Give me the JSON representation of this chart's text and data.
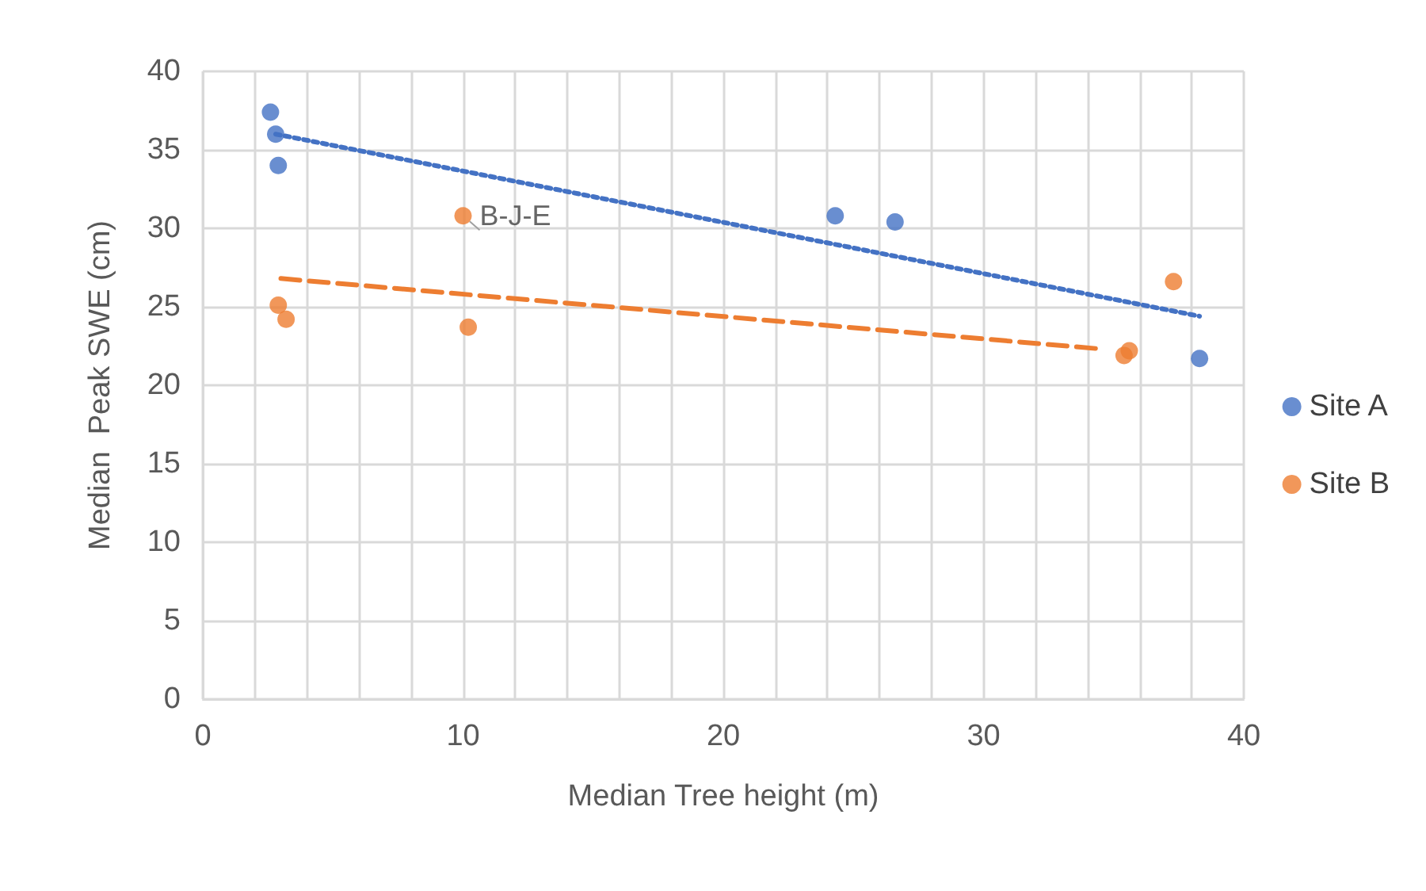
{
  "chart_data": {
    "type": "scatter",
    "xlabel": "Median Tree height (m)",
    "ylabel": "Median  Peak SWE (cm)",
    "xlim": [
      0,
      40
    ],
    "ylim": [
      0,
      40
    ],
    "xticks": [
      0,
      {
        "value": 2,
        "label": null
      },
      {
        "value": 4,
        "label": null
      },
      {
        "value": 6,
        "label": null
      },
      {
        "value": 8,
        "label": null
      },
      10,
      {
        "value": 12,
        "label": null
      },
      {
        "value": 14,
        "label": null
      },
      {
        "value": 16,
        "label": null
      },
      {
        "value": 18,
        "label": null
      },
      20,
      {
        "value": 22,
        "label": null
      },
      {
        "value": 24,
        "label": null
      },
      {
        "value": 26,
        "label": null
      },
      {
        "value": 28,
        "label": null
      },
      30,
      {
        "value": 32,
        "label": null
      },
      {
        "value": 34,
        "label": null
      },
      {
        "value": 36,
        "label": null
      },
      {
        "value": 38,
        "label": null
      },
      40
    ],
    "yticks": [
      0,
      5,
      10,
      15,
      20,
      25,
      30,
      35,
      40
    ],
    "grid": true,
    "legend": "right",
    "marker": "circle",
    "series": [
      {
        "name": "Site A",
        "color": "#4472c4",
        "x": [
          2.6,
          2.8,
          2.9,
          24.3,
          26.6,
          38.3
        ],
        "values": [
          37.4,
          36.0,
          34.0,
          30.8,
          30.4,
          21.7
        ]
      },
      {
        "name": "Site B",
        "color": "#ed7d31",
        "x": [
          10.0,
          2.9,
          3.2,
          10.2,
          35.4,
          35.6,
          37.3
        ],
        "values": [
          30.8,
          25.1,
          24.2,
          23.7,
          21.9,
          22.2,
          26.6
        ]
      },
      {
        "type": "line",
        "color": "#4472c4",
        "line_style": "dotted",
        "marker": "none",
        "x": [
          2.8,
          38.3
        ],
        "values": [
          36.0,
          24.4
        ]
      },
      {
        "type": "line",
        "color": "#ed7d31",
        "line_style": "dashed",
        "marker": "none",
        "x": [
          3.0,
          34.6
        ],
        "values": [
          26.8,
          22.3
        ]
      }
    ],
    "annotations": [
      {
        "text": "B-J-E",
        "x": 10.0,
        "y": 30.8
      }
    ]
  }
}
